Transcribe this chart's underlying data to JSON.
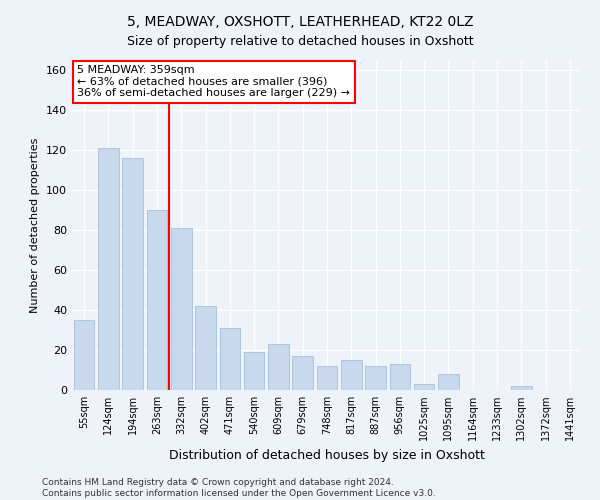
{
  "title": "5, MEADWAY, OXSHOTT, LEATHERHEAD, KT22 0LZ",
  "subtitle": "Size of property relative to detached houses in Oxshott",
  "xlabel": "Distribution of detached houses by size in Oxshott",
  "ylabel": "Number of detached properties",
  "categories": [
    "55sqm",
    "124sqm",
    "194sqm",
    "263sqm",
    "332sqm",
    "402sqm",
    "471sqm",
    "540sqm",
    "609sqm",
    "679sqm",
    "748sqm",
    "817sqm",
    "887sqm",
    "956sqm",
    "1025sqm",
    "1095sqm",
    "1164sqm",
    "1233sqm",
    "1302sqm",
    "1372sqm",
    "1441sqm"
  ],
  "values": [
    35,
    121,
    116,
    90,
    81,
    42,
    31,
    19,
    23,
    17,
    12,
    15,
    12,
    13,
    3,
    8,
    0,
    0,
    2,
    0,
    0
  ],
  "bar_color": "#c9d9ed",
  "bar_edgecolor": "#a8c0d8",
  "redline_x": 3.5,
  "ylim": [
    0,
    165
  ],
  "yticks": [
    0,
    20,
    40,
    60,
    80,
    100,
    120,
    140,
    160
  ],
  "annotation_title": "5 MEADWAY: 359sqm",
  "annotation_line1": "← 63% of detached houses are smaller (396)",
  "annotation_line2": "36% of semi-detached houses are larger (229) →",
  "footer_line1": "Contains HM Land Registry data © Crown copyright and database right 2024.",
  "footer_line2": "Contains public sector information licensed under the Open Government Licence v3.0.",
  "bg_color": "#eef2f9",
  "plot_bg_color": "#eef2f9",
  "grid_color": "#ffffff",
  "title_fontsize": 10,
  "subtitle_fontsize": 9,
  "ylabel_fontsize": 8,
  "xlabel_fontsize": 9,
  "tick_fontsize": 7,
  "annotation_fontsize": 8,
  "footer_fontsize": 6.5
}
